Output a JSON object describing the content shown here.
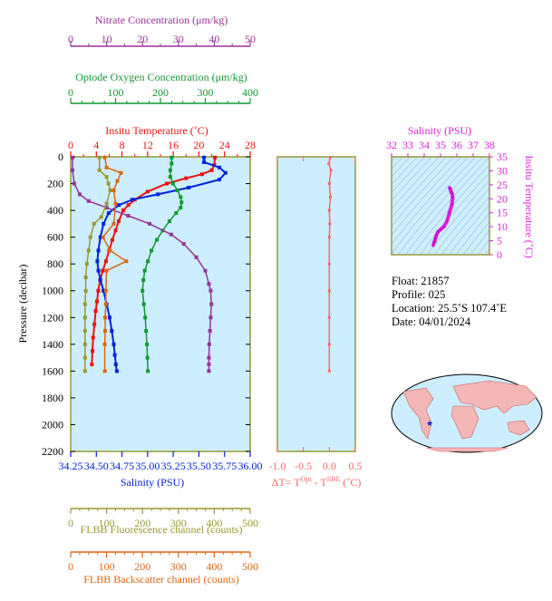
{
  "colors": {
    "nitrate": "#993399",
    "oxygen": "#119933",
    "temperature": "#ee1111",
    "salinity": "#0022dd",
    "fluorescence": "#999933",
    "backscatter": "#dd6611",
    "delta_t": "#ff6666",
    "ts_axis": "#dd22dd",
    "panel_bg": "#cceeff",
    "axis_olive": "#999933"
  },
  "axes": {
    "nitrate": {
      "label": "Nitrate Concentration (μm/kg)",
      "ticks": [
        "0",
        "10",
        "20",
        "30",
        "40",
        "50"
      ]
    },
    "oxygen": {
      "label": "Optode Oxygen Concentration (μm/kg)",
      "ticks": [
        "0",
        "100",
        "200",
        "300",
        "400"
      ]
    },
    "temperature": {
      "label": "Insitu Temperature (˚C)",
      "ticks": [
        "0",
        "4",
        "8",
        "12",
        "16",
        "20",
        "24",
        "28"
      ]
    },
    "pressure": {
      "label": "Pressure (decibar)",
      "ticks": [
        "0",
        "200",
        "400",
        "600",
        "800",
        "1000",
        "1200",
        "1400",
        "1600",
        "1800",
        "2000",
        "2200"
      ]
    },
    "salinity": {
      "label": "Salinity (PSU)",
      "ticks": [
        "34.25",
        "34.50",
        "34.75",
        "35.00",
        "35.25",
        "35.50",
        "35.75",
        "36.00"
      ]
    },
    "delta_t": {
      "label_main": "ΔT= T",
      "label_sup1": "Opt",
      "label_mid": " - T",
      "label_sup2": "SBE",
      "label_end": " (˚C)",
      "ticks": [
        "-1.0",
        "-0.5",
        "0.0",
        "0.5"
      ]
    },
    "fluorescence": {
      "label": "FLBB Fluorescence channel (counts)",
      "ticks": [
        "0",
        "100",
        "200",
        "300",
        "400",
        "500"
      ]
    },
    "backscatter": {
      "label": "FLBB Backscatter channel (counts)",
      "ticks": [
        "0",
        "100",
        "200",
        "300",
        "400",
        "500"
      ]
    },
    "ts_salinity": {
      "label": "Salinity (PSU)",
      "ticks": [
        "32",
        "33",
        "34",
        "35",
        "36",
        "37",
        "38"
      ]
    },
    "ts_temperature": {
      "label": "Insitu Temperature (˚C)",
      "ticks": [
        "0",
        "5",
        "10",
        "15",
        "20",
        "25",
        "30",
        "35"
      ]
    }
  },
  "info": {
    "float": "Float:  21857",
    "profile": "Profile:  025",
    "location": "Location:  25.5˚S  107.4˚E",
    "date": "Date:  04/01/2024"
  },
  "chart_data": [
    {
      "type": "line",
      "title": "",
      "ylabel": "Pressure (decibar)",
      "ylim": [
        2200,
        0
      ],
      "series": [
        {
          "name": "Insitu Temperature",
          "unit": "˚C",
          "xlim": [
            0,
            28
          ],
          "x": [
            22.5,
            22.4,
            22.0,
            20.5,
            18.0,
            15.0,
            12.0,
            10.0,
            9.0,
            8.2,
            7.5,
            7.0,
            6.5,
            6.0,
            5.5,
            5.0,
            4.6,
            4.3,
            4.1,
            3.9,
            3.7,
            3.5,
            3.4,
            3.3
          ],
          "y": [
            5,
            60,
            100,
            130,
            160,
            200,
            260,
            320,
            360,
            400,
            480,
            550,
            620,
            700,
            780,
            850,
            920,
            1000,
            1080,
            1150,
            1250,
            1350,
            1450,
            1550
          ]
        },
        {
          "name": "Salinity",
          "unit": "PSU",
          "xlim": [
            34.25,
            36.0
          ],
          "x": [
            35.55,
            35.55,
            35.7,
            35.76,
            35.7,
            35.4,
            35.1,
            34.85,
            34.72,
            34.62,
            34.57,
            34.54,
            34.52,
            34.51,
            34.52,
            34.54,
            34.57,
            34.6,
            34.63,
            34.65,
            34.67,
            34.68,
            34.69,
            34.7
          ],
          "y": [
            5,
            40,
            80,
            120,
            170,
            230,
            280,
            320,
            360,
            420,
            500,
            600,
            700,
            780,
            850,
            920,
            1000,
            1100,
            1200,
            1300,
            1400,
            1480,
            1550,
            1600
          ]
        },
        {
          "name": "Optode Oxygen Concentration",
          "unit": "μm/kg",
          "xlim": [
            0,
            400
          ],
          "x": [
            225,
            225,
            222,
            222,
            228,
            238,
            245,
            247,
            245,
            235,
            220,
            205,
            192,
            180,
            172,
            165,
            162,
            160,
            163,
            166,
            168,
            170,
            171,
            172
          ],
          "y": [
            5,
            50,
            100,
            150,
            200,
            250,
            300,
            340,
            380,
            420,
            480,
            550,
            620,
            700,
            780,
            850,
            920,
            1000,
            1100,
            1200,
            1300,
            1400,
            1500,
            1600
          ]
        },
        {
          "name": "Nitrate Concentration",
          "unit": "μm/kg",
          "xlim": [
            0,
            50
          ],
          "x": [
            0.5,
            0.5,
            1.0,
            2.5,
            5.0,
            10.0,
            16.0,
            22.0,
            28.0,
            31.5,
            35.0,
            37.5,
            38.5,
            39.0,
            39.2,
            39.0,
            38.8,
            38.6,
            38.5,
            38.5,
            38.5
          ],
          "y": [
            5,
            100,
            200,
            280,
            330,
            380,
            440,
            500,
            580,
            650,
            750,
            850,
            950,
            1000,
            1100,
            1200,
            1300,
            1400,
            1500,
            1550,
            1600
          ]
        },
        {
          "name": "FLBB Fluorescence channel",
          "unit": "counts",
          "xlim": [
            0,
            500
          ],
          "x": [
            80,
            80,
            100,
            105,
            110,
            100,
            85,
            65,
            55,
            50,
            45,
            42,
            42,
            40,
            40,
            40,
            40,
            40,
            40
          ],
          "y": [
            5,
            100,
            150,
            200,
            250,
            350,
            450,
            500,
            600,
            700,
            800,
            900,
            1000,
            1100,
            1200,
            1300,
            1400,
            1500,
            1600
          ]
        },
        {
          "name": "FLBB Backscatter channel",
          "unit": "counts",
          "xlim": [
            0,
            500
          ],
          "x": [
            95,
            100,
            140,
            130,
            120,
            125,
            120,
            90,
            110,
            155,
            100,
            98,
            98,
            96,
            96,
            95,
            95
          ],
          "y": [
            5,
            80,
            120,
            180,
            250,
            350,
            500,
            600,
            700,
            780,
            850,
            1000,
            1100,
            1200,
            1300,
            1400,
            1600
          ]
        }
      ]
    },
    {
      "type": "line",
      "xlabel": "ΔT= T Opt - T SBE (˚C)",
      "xlim": [
        -1.0,
        0.5
      ],
      "ylim": [
        2200,
        0
      ],
      "series": [
        {
          "name": "ΔT",
          "x": [
            0.02,
            -0.01,
            0.03,
            0.0,
            0.02,
            0.0,
            0.01,
            0.0,
            0.0,
            0.0,
            0.0,
            0.0,
            0.0
          ],
          "y": [
            5,
            50,
            100,
            200,
            300,
            400,
            500,
            600,
            800,
            1000,
            1200,
            1400,
            1600
          ]
        }
      ]
    },
    {
      "type": "line",
      "xlabel": "Salinity (PSU)",
      "ylabel": "Insitu Temperature (˚C)",
      "xlim": [
        32,
        38
      ],
      "ylim": [
        0,
        35
      ],
      "series": [
        {
          "name": "T-S",
          "x": [
            34.55,
            34.6,
            34.65,
            34.7,
            34.75,
            34.85,
            35.0,
            35.2,
            35.4,
            35.55,
            35.7,
            35.75,
            35.7,
            35.65,
            35.6,
            35.55
          ],
          "y": [
            3.3,
            4.3,
            5.0,
            6.0,
            7.0,
            8.2,
            9.0,
            10.0,
            12.0,
            15.0,
            18.0,
            20.5,
            22.0,
            22.4,
            23.5,
            24.0
          ]
        }
      ]
    }
  ]
}
